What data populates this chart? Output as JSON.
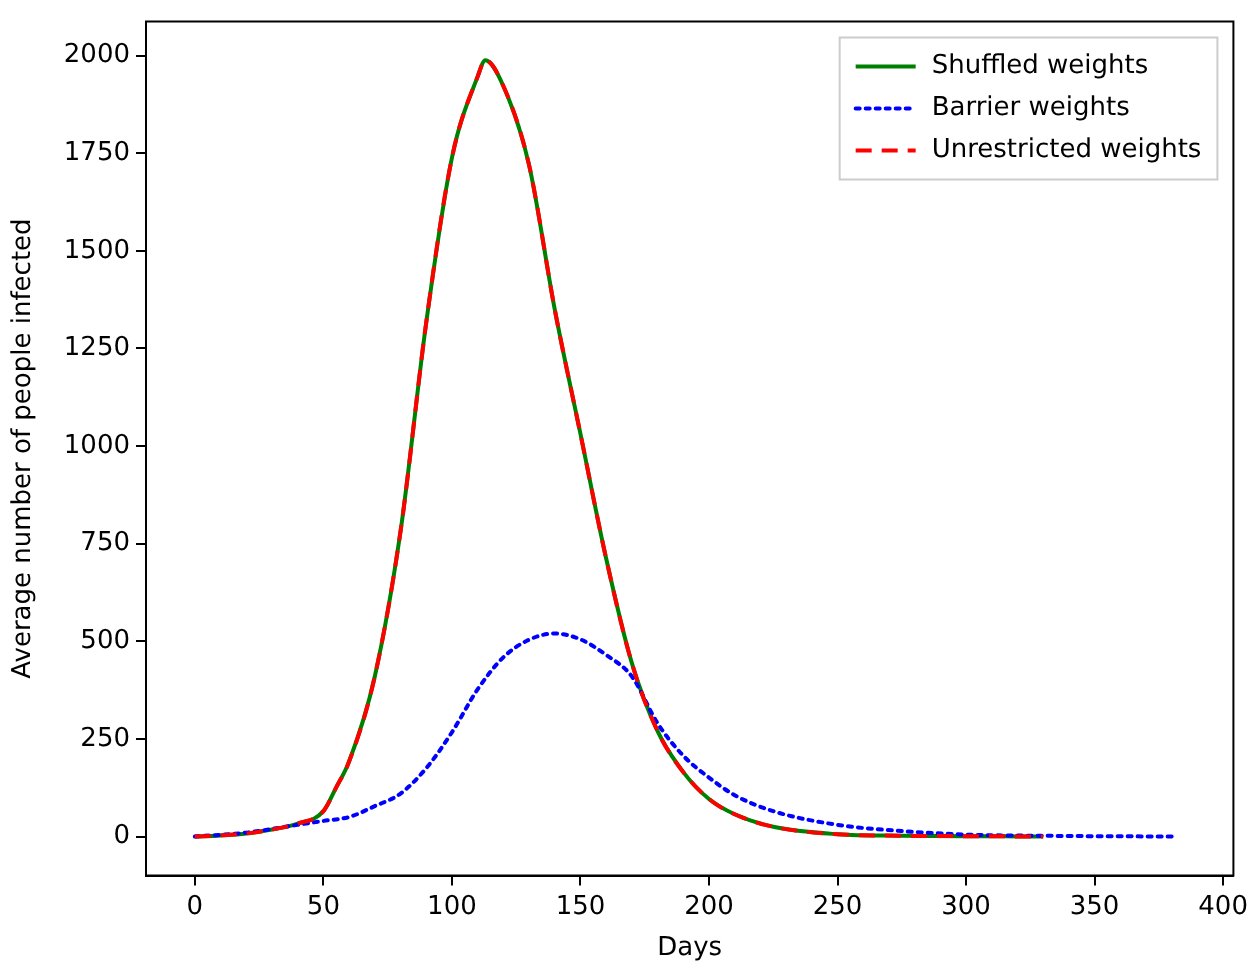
{
  "chart_data": {
    "type": "line",
    "xlabel": "Days",
    "ylabel": "Average number of people infected",
    "xlim": [
      -19,
      404
    ],
    "xticks": [
      0,
      50,
      100,
      150,
      200,
      250,
      300,
      350,
      400
    ],
    "ylim": [
      -100,
      2087
    ],
    "yticks": [
      0,
      250,
      500,
      750,
      1000,
      1250,
      1500,
      1750,
      2000
    ],
    "grid": false,
    "legend": "top right",
    "series": [
      {
        "name": "Shuffled weights",
        "color": "#008000",
        "line_style": "solid",
        "x": [
          0,
          10,
          20,
          30,
          40,
          50,
          55,
          60,
          70,
          80,
          90,
          100,
          110,
          113,
          120,
          130,
          140,
          150,
          160,
          170,
          180,
          190,
          200,
          210,
          225,
          250,
          275,
          300,
          330
        ],
        "values": [
          0,
          3,
          8,
          18,
          33,
          65,
          126,
          192,
          410,
          781,
          1316,
          1738,
          1946,
          1988,
          1922,
          1720,
          1350,
          1031,
          712,
          444,
          270,
          165,
          96,
          57,
          25,
          6,
          2,
          1,
          0
        ]
      },
      {
        "name": "Barrier weights",
        "color": "#0000ff",
        "line_style": "dotted",
        "x": [
          0,
          20,
          40,
          50,
          60,
          70,
          80,
          90,
          100,
          110,
          120,
          130,
          140,
          150,
          160,
          170,
          180,
          190,
          200,
          210,
          225,
          250,
          275,
          300,
          330,
          380
        ],
        "values": [
          0,
          10,
          30,
          40,
          50,
          78,
          110,
          175,
          267,
          377,
          459,
          504,
          520,
          505,
          465,
          410,
          290,
          207,
          151,
          106,
          65,
          30,
          14,
          5,
          2,
          0
        ]
      },
      {
        "name": "Unrestricted weights",
        "color": "#ff0000",
        "line_style": "dashed",
        "x": [
          0,
          10,
          20,
          30,
          40,
          50,
          55,
          60,
          70,
          80,
          90,
          100,
          110,
          113,
          120,
          130,
          140,
          150,
          160,
          170,
          180,
          190,
          200,
          210,
          225,
          250,
          275,
          300,
          330
        ],
        "values": [
          0,
          3,
          8,
          18,
          33,
          65,
          126,
          192,
          410,
          781,
          1316,
          1738,
          1946,
          1988,
          1922,
          1720,
          1350,
          1031,
          712,
          444,
          270,
          165,
          96,
          57,
          25,
          6,
          2,
          1,
          0
        ]
      }
    ]
  }
}
